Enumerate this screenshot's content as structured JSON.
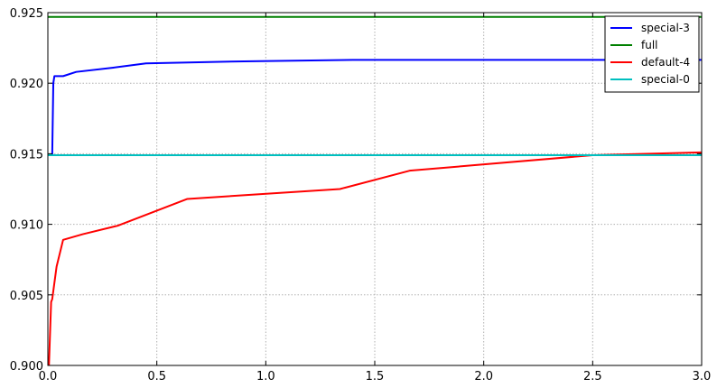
{
  "chart_data": {
    "type": "line",
    "title": "",
    "xlabel": "",
    "ylabel": "",
    "xlim": [
      0.0,
      3.0
    ],
    "ylim": [
      0.9,
      0.925
    ],
    "x_ticks": [
      "0.0",
      "0.5",
      "1.0",
      "1.5",
      "2.0",
      "2.5",
      "3.0"
    ],
    "y_ticks": [
      "0.900",
      "0.905",
      "0.910",
      "0.915",
      "0.920",
      "0.925"
    ],
    "grid": true,
    "legend_position": "top-right",
    "series": [
      {
        "name": "special-3",
        "color": "#0000ff",
        "x": [
          0.0,
          0.02,
          0.025,
          0.03,
          0.07,
          0.13,
          0.3,
          0.45,
          0.9,
          1.4,
          2.0,
          3.0
        ],
        "y": [
          0.9149,
          0.9149,
          0.92,
          0.9205,
          0.9205,
          0.9208,
          0.9211,
          0.9214,
          0.92155,
          0.92165,
          0.92165,
          0.92165
        ]
      },
      {
        "name": "full",
        "color": "#008000",
        "x": [
          0.0,
          3.0
        ],
        "y": [
          0.9247,
          0.9247
        ]
      },
      {
        "name": "default-4",
        "color": "#ff0000",
        "x": [
          0.0,
          0.005,
          0.015,
          0.02,
          0.04,
          0.07,
          0.16,
          0.32,
          0.64,
          1.34,
          1.66,
          2.5,
          3.0
        ],
        "y": [
          0.9,
          0.9,
          0.9045,
          0.9047,
          0.907,
          0.9089,
          0.9093,
          0.9099,
          0.9118,
          0.9125,
          0.9138,
          0.9149,
          0.9151
        ]
      },
      {
        "name": "special-0",
        "color": "#00bfbf",
        "x": [
          0.0,
          3.0
        ],
        "y": [
          0.9149,
          0.9149
        ]
      }
    ]
  }
}
